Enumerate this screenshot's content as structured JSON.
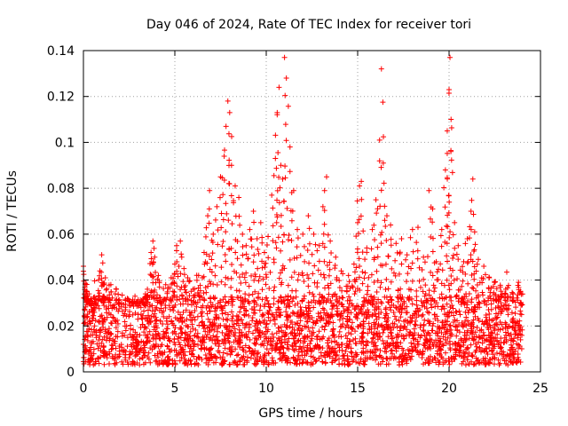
{
  "chart_data": {
    "type": "scatter",
    "title": "Day 046 of 2024, Rate Of TEC Index for receiver tori",
    "xlabel": "GPS time / hours",
    "ylabel": "ROTI / TECUs",
    "xlim": [
      0,
      25
    ],
    "ylim": [
      0,
      0.14
    ],
    "xticks": [
      "0",
      "5",
      "10",
      "15",
      "20",
      "25"
    ],
    "yticks": [
      "0",
      "0.02",
      "0.04",
      "0.06",
      "0.08",
      "0.1",
      "0.12",
      "0.14"
    ],
    "grid": true,
    "marker": "plus",
    "color": "#ff0000",
    "series": [
      {
        "points": [
          [
            0.0,
            0.046
          ],
          [
            0.1,
            0.038
          ],
          [
            0.2,
            0.035
          ],
          [
            0.3,
            0.031
          ],
          [
            0.6,
            0.028
          ],
          [
            0.9,
            0.044
          ],
          [
            1.0,
            0.051
          ],
          [
            1.2,
            0.041
          ],
          [
            1.5,
            0.038
          ],
          [
            1.8,
            0.036
          ],
          [
            2.4,
            0.032
          ],
          [
            2.7,
            0.03
          ],
          [
            3.0,
            0.029
          ],
          [
            3.3,
            0.032
          ],
          [
            3.5,
            0.036
          ],
          [
            3.7,
            0.052
          ],
          [
            3.8,
            0.057
          ],
          [
            3.9,
            0.05
          ],
          [
            4.1,
            0.042
          ],
          [
            4.5,
            0.038
          ],
          [
            4.8,
            0.041
          ],
          [
            5.0,
            0.047
          ],
          [
            5.1,
            0.055
          ],
          [
            5.3,
            0.057
          ],
          [
            5.5,
            0.045
          ],
          [
            5.7,
            0.041
          ],
          [
            6.0,
            0.036
          ],
          [
            6.3,
            0.042
          ],
          [
            6.6,
            0.052
          ],
          [
            6.8,
            0.068
          ],
          [
            6.9,
            0.079
          ],
          [
            7.1,
            0.06
          ],
          [
            7.3,
            0.072
          ],
          [
            7.5,
            0.085
          ],
          [
            7.7,
            0.094
          ],
          [
            7.8,
            0.107
          ],
          [
            7.9,
            0.118
          ],
          [
            8.0,
            0.113
          ],
          [
            8.1,
            0.09
          ],
          [
            8.3,
            0.081
          ],
          [
            8.5,
            0.076
          ],
          [
            8.7,
            0.06
          ],
          [
            8.9,
            0.055
          ],
          [
            9.1,
            0.062
          ],
          [
            9.3,
            0.07
          ],
          [
            9.5,
            0.058
          ],
          [
            9.7,
            0.065
          ],
          [
            9.9,
            0.052
          ],
          [
            10.1,
            0.059
          ],
          [
            10.3,
            0.077
          ],
          [
            10.5,
            0.093
          ],
          [
            10.6,
            0.113
          ],
          [
            10.7,
            0.124
          ],
          [
            10.8,
            0.09
          ],
          [
            10.9,
            0.084
          ],
          [
            11.0,
            0.137
          ],
          [
            11.1,
            0.128
          ],
          [
            11.3,
            0.098
          ],
          [
            11.5,
            0.079
          ],
          [
            11.7,
            0.062
          ],
          [
            12.0,
            0.06
          ],
          [
            12.3,
            0.068
          ],
          [
            12.6,
            0.06
          ],
          [
            12.9,
            0.055
          ],
          [
            13.1,
            0.072
          ],
          [
            13.3,
            0.085
          ],
          [
            13.5,
            0.057
          ],
          [
            13.8,
            0.05
          ],
          [
            14.1,
            0.044
          ],
          [
            14.5,
            0.042
          ],
          [
            14.8,
            0.047
          ],
          [
            15.0,
            0.065
          ],
          [
            15.1,
            0.081
          ],
          [
            15.2,
            0.083
          ],
          [
            15.5,
            0.054
          ],
          [
            15.8,
            0.062
          ],
          [
            16.0,
            0.075
          ],
          [
            16.2,
            0.101
          ],
          [
            16.3,
            0.132
          ],
          [
            16.4,
            0.091
          ],
          [
            16.6,
            0.068
          ],
          [
            16.8,
            0.064
          ],
          [
            17.1,
            0.056
          ],
          [
            17.4,
            0.058
          ],
          [
            17.7,
            0.051
          ],
          [
            18.0,
            0.062
          ],
          [
            18.3,
            0.063
          ],
          [
            18.6,
            0.05
          ],
          [
            18.9,
            0.079
          ],
          [
            19.1,
            0.071
          ],
          [
            19.3,
            0.048
          ],
          [
            19.6,
            0.062
          ],
          [
            19.8,
            0.088
          ],
          [
            19.9,
            0.105
          ],
          [
            20.0,
            0.123
          ],
          [
            20.05,
            0.137
          ],
          [
            20.1,
            0.096
          ],
          [
            20.3,
            0.065
          ],
          [
            20.5,
            0.055
          ],
          [
            20.8,
            0.048
          ],
          [
            21.0,
            0.058
          ],
          [
            21.2,
            0.07
          ],
          [
            21.3,
            0.084
          ],
          [
            21.4,
            0.061
          ],
          [
            21.6,
            0.049
          ],
          [
            21.9,
            0.046
          ],
          [
            22.2,
            0.041
          ],
          [
            22.5,
            0.039
          ],
          [
            22.8,
            0.037
          ],
          [
            23.1,
            0.036
          ],
          [
            23.5,
            0.034
          ],
          [
            23.8,
            0.039
          ],
          [
            23.9,
            0.035
          ]
        ],
        "band": {
          "x_range": [
            0,
            24
          ],
          "baseline_min": 0.003,
          "baseline_max": 0.033
        }
      }
    ]
  }
}
